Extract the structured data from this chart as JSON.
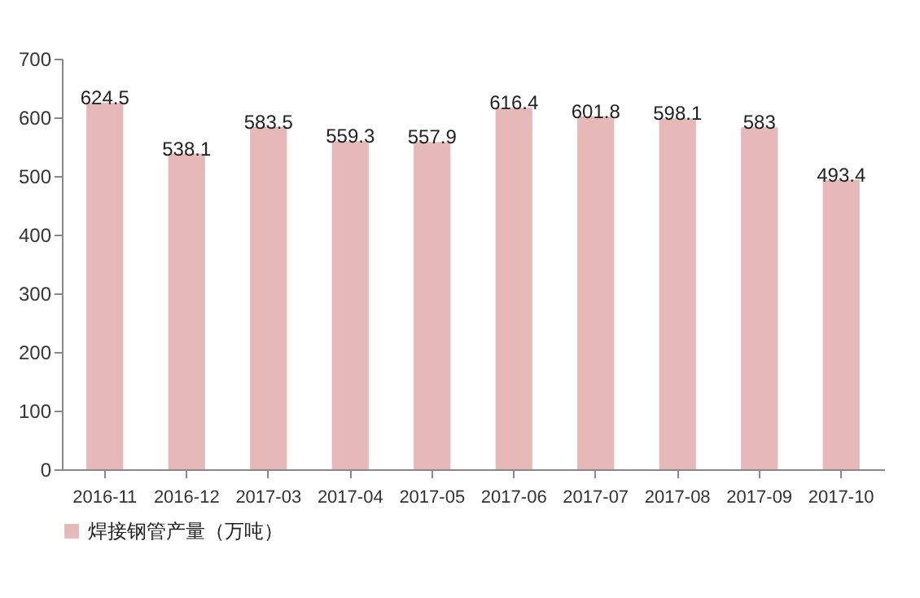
{
  "chart_data": {
    "type": "bar",
    "categories": [
      "2016-11",
      "2016-12",
      "2017-03",
      "2017-04",
      "2017-05",
      "2017-06",
      "2017-07",
      "2017-08",
      "2017-09",
      "2017-10"
    ],
    "series": [
      {
        "name": "焊接钢管产量（万吨）",
        "color": "#e6b9b8",
        "values": [
          624.5,
          538.1,
          583.5,
          559.3,
          557.9,
          616.4,
          601.8,
          598.1,
          583,
          493.4
        ]
      }
    ],
    "ylim": [
      0,
      700
    ],
    "yticks": [
      0,
      100,
      200,
      300,
      400,
      500,
      600,
      700
    ],
    "data_labels": true,
    "legend": "bottom"
  }
}
